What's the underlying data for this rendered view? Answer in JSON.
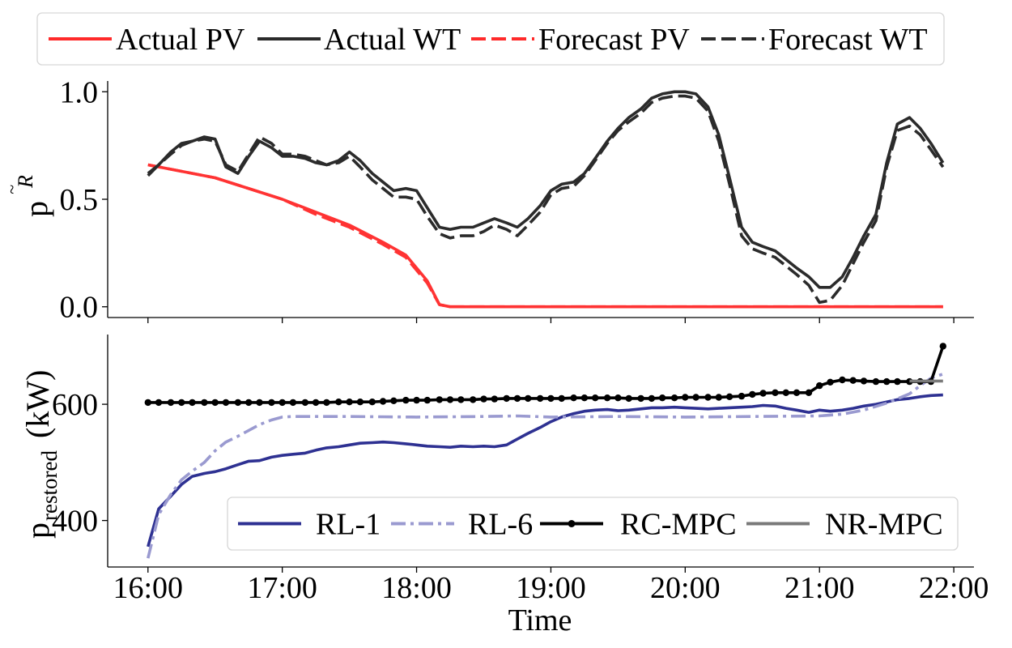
{
  "chart_data": [
    {
      "type": "line",
      "title": "",
      "xlabel": "",
      "ylabel_base": "p",
      "ylabel_super": "R",
      "ylim": [
        -0.05,
        1.05
      ],
      "yticks": [
        0.0,
        0.5,
        1.0
      ],
      "ytick_labels": [
        "0.0",
        "0.5",
        "1.0"
      ],
      "xlim": [
        -0.3,
        6.15
      ],
      "xticks": [
        0,
        1,
        2,
        3,
        4,
        5,
        6
      ],
      "legend": {
        "position": "top-outside",
        "entries": [
          {
            "label": "Actual PV",
            "color": "#ff2a2a",
            "dash": "solid"
          },
          {
            "label": "Actual WT",
            "color": "#2a2a2a",
            "dash": "solid"
          },
          {
            "label": "Forecast PV",
            "color": "#ff2a2a",
            "dash": "dashed"
          },
          {
            "label": "Forecast WT",
            "color": "#2a2a2a",
            "dash": "dashed"
          }
        ]
      },
      "series": [
        {
          "name": "Actual PV",
          "color": "#ff3333",
          "dash": "solid",
          "x": [
            0,
            0.5,
            1.0,
            1.25,
            1.5,
            1.75,
            1.92,
            2.0,
            2.08,
            2.17,
            2.25,
            5.92
          ],
          "y": [
            0.66,
            0.6,
            0.5,
            0.44,
            0.38,
            0.3,
            0.24,
            0.18,
            0.12,
            0.01,
            0.0,
            0.0
          ]
        },
        {
          "name": "Forecast PV",
          "color": "#ff3333",
          "dash": "dashed",
          "x": [
            0,
            0.5,
            1.0,
            1.25,
            1.5,
            1.75,
            1.92,
            2.0,
            2.08,
            2.17,
            2.25,
            5.92
          ],
          "y": [
            0.66,
            0.6,
            0.5,
            0.43,
            0.37,
            0.29,
            0.23,
            0.17,
            0.11,
            0.01,
            0.0,
            0.0
          ]
        },
        {
          "name": "Actual WT",
          "color": "#2b2b2b",
          "dash": "solid",
          "x": [
            0,
            0.08,
            0.17,
            0.25,
            0.33,
            0.42,
            0.5,
            0.58,
            0.67,
            0.75,
            0.83,
            0.92,
            1.0,
            1.08,
            1.17,
            1.25,
            1.33,
            1.42,
            1.5,
            1.58,
            1.67,
            1.75,
            1.83,
            1.92,
            2.0,
            2.08,
            2.17,
            2.25,
            2.33,
            2.42,
            2.5,
            2.58,
            2.67,
            2.75,
            2.83,
            2.92,
            3.0,
            3.08,
            3.17,
            3.25,
            3.33,
            3.42,
            3.5,
            3.58,
            3.67,
            3.75,
            3.83,
            3.92,
            4.0,
            4.08,
            4.17,
            4.25,
            4.33,
            4.42,
            4.5,
            4.58,
            4.67,
            4.75,
            4.83,
            4.92,
            5.0,
            5.08,
            5.17,
            5.25,
            5.33,
            5.42,
            5.5,
            5.58,
            5.67,
            5.75,
            5.83,
            5.92
          ],
          "y": [
            0.61,
            0.66,
            0.72,
            0.76,
            0.77,
            0.79,
            0.78,
            0.65,
            0.62,
            0.7,
            0.77,
            0.74,
            0.7,
            0.7,
            0.69,
            0.67,
            0.66,
            0.68,
            0.72,
            0.68,
            0.62,
            0.58,
            0.54,
            0.55,
            0.54,
            0.46,
            0.37,
            0.36,
            0.37,
            0.37,
            0.39,
            0.41,
            0.39,
            0.37,
            0.41,
            0.47,
            0.54,
            0.57,
            0.58,
            0.62,
            0.69,
            0.77,
            0.83,
            0.88,
            0.92,
            0.97,
            0.99,
            1.0,
            1.0,
            0.99,
            0.93,
            0.8,
            0.6,
            0.37,
            0.3,
            0.28,
            0.26,
            0.22,
            0.18,
            0.14,
            0.09,
            0.09,
            0.14,
            0.23,
            0.33,
            0.43,
            0.67,
            0.85,
            0.88,
            0.83,
            0.76,
            0.67
          ]
        },
        {
          "name": "Forecast WT",
          "color": "#2b2b2b",
          "dash": "dashed",
          "x": [
            0,
            0.08,
            0.17,
            0.25,
            0.33,
            0.42,
            0.5,
            0.58,
            0.67,
            0.75,
            0.83,
            0.92,
            1.0,
            1.08,
            1.17,
            1.25,
            1.33,
            1.42,
            1.5,
            1.58,
            1.67,
            1.75,
            1.83,
            1.92,
            2.0,
            2.08,
            2.17,
            2.25,
            2.33,
            2.42,
            2.5,
            2.58,
            2.67,
            2.75,
            2.83,
            2.92,
            3.0,
            3.08,
            3.17,
            3.25,
            3.33,
            3.42,
            3.5,
            3.58,
            3.67,
            3.75,
            3.83,
            3.92,
            4.0,
            4.08,
            4.17,
            4.25,
            4.33,
            4.42,
            4.5,
            4.58,
            4.67,
            4.75,
            4.83,
            4.92,
            5.0,
            5.08,
            5.17,
            5.25,
            5.33,
            5.42,
            5.5,
            5.58,
            5.67,
            5.75,
            5.83,
            5.92
          ],
          "y": [
            0.62,
            0.66,
            0.71,
            0.75,
            0.77,
            0.78,
            0.77,
            0.66,
            0.63,
            0.71,
            0.79,
            0.76,
            0.71,
            0.71,
            0.7,
            0.68,
            0.66,
            0.67,
            0.7,
            0.65,
            0.59,
            0.55,
            0.51,
            0.51,
            0.5,
            0.42,
            0.34,
            0.32,
            0.33,
            0.33,
            0.35,
            0.38,
            0.36,
            0.33,
            0.38,
            0.44,
            0.52,
            0.55,
            0.56,
            0.61,
            0.68,
            0.76,
            0.82,
            0.86,
            0.9,
            0.95,
            0.97,
            0.98,
            0.98,
            0.97,
            0.91,
            0.77,
            0.57,
            0.33,
            0.27,
            0.25,
            0.23,
            0.19,
            0.15,
            0.1,
            0.02,
            0.03,
            0.1,
            0.2,
            0.3,
            0.4,
            0.65,
            0.82,
            0.84,
            0.8,
            0.73,
            0.65
          ]
        }
      ]
    },
    {
      "type": "line",
      "title": "",
      "xlabel": "Time",
      "ylabel_base": "p",
      "ylabel_sub": "restored",
      "ylabel_unit": "(kW)",
      "ylim": [
        320,
        720
      ],
      "yticks": [
        400,
        600
      ],
      "ytick_labels": [
        "400",
        "600"
      ],
      "xlim": [
        -0.3,
        6.15
      ],
      "xticks": [
        0,
        1,
        2,
        3,
        4,
        5,
        6
      ],
      "xtick_labels": [
        "16:00",
        "17:00",
        "18:00",
        "19:00",
        "20:00",
        "21:00",
        "22:00"
      ],
      "legend": {
        "position": "lower-right",
        "entries": [
          {
            "label": "RL-1",
            "color": "#2e3192",
            "dash": "solid",
            "marker": ""
          },
          {
            "label": "RL-6",
            "color": "#9a9ad0",
            "dash": "dashdot",
            "marker": ""
          },
          {
            "label": "RC-MPC",
            "color": "#000000",
            "dash": "solid",
            "marker": "o"
          },
          {
            "label": "NR-MPC",
            "color": "#7a7a7a",
            "dash": "solid",
            "marker": ""
          }
        ]
      },
      "series": [
        {
          "name": "RL-1",
          "color": "#2e3192",
          "dash": "solid",
          "x": [
            0,
            0.08,
            0.17,
            0.25,
            0.33,
            0.42,
            0.5,
            0.58,
            0.67,
            0.75,
            0.83,
            0.92,
            1.0,
            1.08,
            1.17,
            1.25,
            1.33,
            1.42,
            1.5,
            1.58,
            1.67,
            1.75,
            1.83,
            1.92,
            2.0,
            2.08,
            2.17,
            2.25,
            2.33,
            2.42,
            2.5,
            2.58,
            2.67,
            2.75,
            2.83,
            2.92,
            3.0,
            3.08,
            3.17,
            3.25,
            3.33,
            3.42,
            3.5,
            3.58,
            3.67,
            3.75,
            3.83,
            3.92,
            4.0,
            4.08,
            4.17,
            4.25,
            4.33,
            4.42,
            4.5,
            4.58,
            4.67,
            4.75,
            4.83,
            4.92,
            5.0,
            5.08,
            5.17,
            5.25,
            5.33,
            5.42,
            5.5,
            5.58,
            5.67,
            5.75,
            5.83,
            5.92
          ],
          "y": [
            355,
            420,
            442,
            462,
            476,
            481,
            484,
            489,
            496,
            502,
            503,
            509,
            512,
            514,
            516,
            521,
            525,
            527,
            530,
            533,
            534,
            535,
            534,
            532,
            530,
            528,
            527,
            526,
            528,
            527,
            528,
            527,
            530,
            540,
            550,
            560,
            570,
            578,
            584,
            588,
            590,
            591,
            589,
            590,
            592,
            594,
            594,
            595,
            594,
            593,
            592,
            593,
            594,
            595,
            596,
            598,
            597,
            593,
            590,
            586,
            590,
            588,
            590,
            593,
            597,
            600,
            604,
            608,
            610,
            613,
            615,
            616
          ]
        },
        {
          "name": "RL-6",
          "color": "#9a9ad0",
          "dash": "dashdot",
          "x": [
            0,
            0.08,
            0.17,
            0.25,
            0.33,
            0.42,
            0.5,
            0.58,
            0.67,
            0.75,
            0.83,
            0.92,
            1.0,
            1.08,
            1.17,
            1.5,
            2.0,
            2.5,
            2.75,
            3.0,
            3.5,
            4.0,
            4.5,
            5.0,
            5.17,
            5.33,
            5.5,
            5.67,
            5.75,
            5.83,
            5.92
          ],
          "y": [
            335,
            410,
            445,
            470,
            485,
            500,
            520,
            535,
            545,
            555,
            565,
            573,
            578,
            579,
            579,
            579,
            578,
            579,
            580,
            578,
            579,
            578,
            579,
            580,
            583,
            590,
            602,
            618,
            632,
            645,
            652
          ]
        },
        {
          "name": "RC-MPC",
          "color": "#000000",
          "dash": "solid",
          "marker": "o",
          "x": [
            0,
            0.08,
            0.17,
            0.25,
            0.33,
            0.42,
            0.5,
            0.58,
            0.67,
            0.75,
            0.83,
            0.92,
            1.0,
            1.08,
            1.17,
            1.25,
            1.33,
            1.42,
            1.5,
            1.58,
            1.67,
            1.75,
            1.83,
            1.92,
            2.0,
            2.08,
            2.17,
            2.25,
            2.33,
            2.42,
            2.5,
            2.58,
            2.67,
            2.75,
            2.83,
            2.92,
            3.0,
            3.08,
            3.17,
            3.25,
            3.33,
            3.42,
            3.5,
            3.58,
            3.67,
            3.75,
            3.83,
            3.92,
            4.0,
            4.08,
            4.17,
            4.25,
            4.33,
            4.42,
            4.5,
            4.58,
            4.67,
            4.75,
            4.83,
            4.92,
            5.0,
            5.08,
            5.17,
            5.25,
            5.33,
            5.42,
            5.5,
            5.58,
            5.67,
            5.75,
            5.83,
            5.92
          ],
          "y": [
            603,
            603,
            603,
            603,
            603,
            603,
            603,
            603,
            603,
            603,
            603,
            603,
            603,
            603,
            603,
            603,
            603,
            604,
            604,
            604,
            604,
            605,
            606,
            607,
            607,
            607,
            608,
            608,
            608,
            608,
            609,
            609,
            610,
            610,
            610,
            610,
            610,
            610,
            611,
            611,
            611,
            611,
            611,
            610,
            610,
            610,
            611,
            611,
            612,
            612,
            612,
            612,
            613,
            614,
            617,
            619,
            620,
            620,
            620,
            620,
            632,
            638,
            642,
            641,
            640,
            639,
            639,
            639,
            639,
            639,
            639,
            700
          ]
        },
        {
          "name": "NR-MPC",
          "color": "#7a7a7a",
          "dash": "solid",
          "x": [
            5.67,
            5.75,
            5.83,
            5.92
          ],
          "y": [
            640,
            640,
            640,
            640
          ]
        }
      ]
    }
  ]
}
